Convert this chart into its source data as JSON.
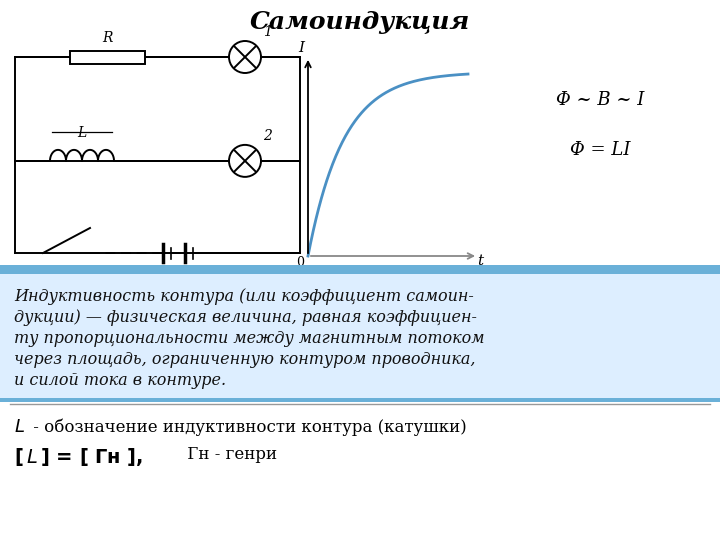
{
  "title": "Самоиндукция",
  "title_fontsize": 18,
  "bg_color": "#ffffff",
  "middle_panel_bg": "#ddeeff",
  "middle_border_color": "#6ab0d8",
  "middle_text_lines": [
    "Индуктивность контура (или коэффициент самоин-",
    "дукции) — физическая величина, равная коэффициен-",
    "ту пропорциональности между магнитным потоком",
    "через площадь, ограниченную контуром проводника,",
    "и силой тока в контуре."
  ],
  "middle_fontsize": 11.5,
  "formula1": "Φ ~ B ~ I",
  "formula2": "Φ = LI",
  "formula_fontsize": 13,
  "curve_color": "#4a90c4",
  "circuit_color": "#000000",
  "separator_color": "#6ab0d8"
}
